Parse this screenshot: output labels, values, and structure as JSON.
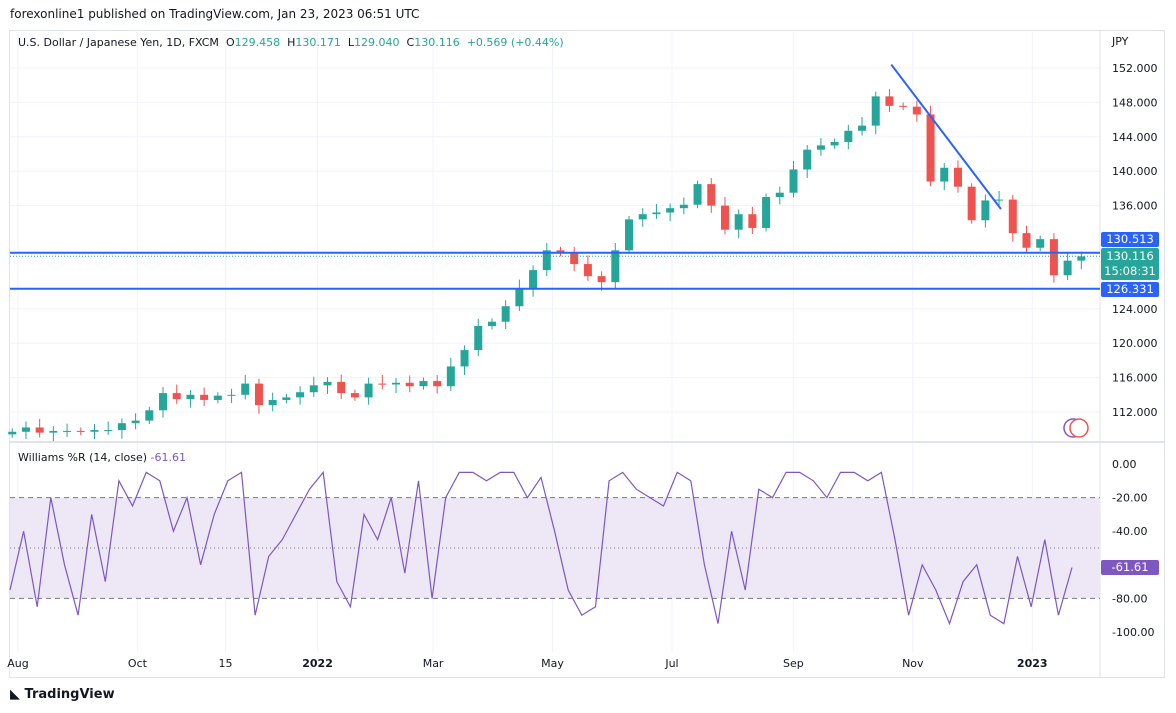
{
  "header": {
    "published": "forexonline1 published on TradingView.com, Jan 23, 2023 06:51 UTC"
  },
  "legend": {
    "symbol": "U.S. Dollar / Japanese Yen, 1D, FXCM",
    "o_label": "O",
    "o": "129.458",
    "h_label": "H",
    "h": "130.171",
    "l_label": "L",
    "l": "129.040",
    "c_label": "C",
    "c": "130.116",
    "change": "+0.569 (+0.44%)"
  },
  "indicator": {
    "name": "Williams %R (14, close)",
    "value": "-61.61"
  },
  "price_tags": {
    "resistance": "130.513",
    "last": "130.116",
    "countdown": "15:08:31",
    "support": "126.331"
  },
  "footer": {
    "brand": "TradingView"
  },
  "colors": {
    "up": "#26a69a",
    "down": "#ef5350",
    "line": "#2962ff",
    "williams": "#7e57c2",
    "band": "#ede7f6"
  },
  "chart_data": [
    {
      "type": "candlestick",
      "currency": "JPY",
      "ylim": [
        110,
        153
      ],
      "yticks": [
        "152.000",
        "148.000",
        "144.000",
        "140.000",
        "136.000",
        "124.000",
        "120.000",
        "116.000",
        "112.000"
      ],
      "xticks": [
        {
          "label": "Aug",
          "d": "2021-08-01"
        },
        {
          "label": "Oct",
          "d": "2021-10-01"
        },
        {
          "label": "15",
          "d": "2021-11-15"
        },
        {
          "label": "2022",
          "d": "2022-01-01"
        },
        {
          "label": "Mar",
          "d": "2022-03-01"
        },
        {
          "label": "May",
          "d": "2022-05-01"
        },
        {
          "label": "Jul",
          "d": "2022-07-01"
        },
        {
          "label": "Sep",
          "d": "2022-09-01"
        },
        {
          "label": "Nov",
          "d": "2022-11-01"
        },
        {
          "label": "2023",
          "d": "2023-01-01"
        }
      ],
      "horizontal_lines": [
        130.513,
        126.331
      ],
      "last_price": 130.116,
      "trendline": [
        {
          "d": "2022-10-21",
          "p": 152.4
        },
        {
          "d": "2022-12-16",
          "p": 135.6
        }
      ],
      "weekly_close": [
        [
          "2021-07-26",
          109.7
        ],
        [
          "2021-08-02",
          110.2
        ],
        [
          "2021-08-09",
          109.6
        ],
        [
          "2021-08-16",
          109.8
        ],
        [
          "2021-08-23",
          109.8
        ],
        [
          "2021-08-30",
          109.7
        ],
        [
          "2021-09-06",
          109.9
        ],
        [
          "2021-09-13",
          109.9
        ],
        [
          "2021-09-20",
          110.7
        ],
        [
          "2021-09-27",
          111.0
        ],
        [
          "2021-10-04",
          112.2
        ],
        [
          "2021-10-11",
          114.2
        ],
        [
          "2021-10-18",
          113.5
        ],
        [
          "2021-10-25",
          114.0
        ],
        [
          "2021-11-01",
          113.4
        ],
        [
          "2021-11-08",
          113.9
        ],
        [
          "2021-11-15",
          114.0
        ],
        [
          "2021-11-22",
          115.3
        ],
        [
          "2021-11-29",
          112.8
        ],
        [
          "2021-12-06",
          113.4
        ],
        [
          "2021-12-13",
          113.7
        ],
        [
          "2021-12-20",
          114.3
        ],
        [
          "2021-12-27",
          115.1
        ],
        [
          "2022-01-03",
          115.5
        ],
        [
          "2022-01-10",
          114.2
        ],
        [
          "2022-01-17",
          113.7
        ],
        [
          "2022-01-24",
          115.3
        ],
        [
          "2022-01-31",
          115.2
        ],
        [
          "2022-02-07",
          115.4
        ],
        [
          "2022-02-14",
          115.0
        ],
        [
          "2022-02-21",
          115.6
        ],
        [
          "2022-02-28",
          115.0
        ],
        [
          "2022-03-07",
          117.3
        ],
        [
          "2022-03-14",
          119.2
        ],
        [
          "2022-03-21",
          122.0
        ],
        [
          "2022-03-28",
          122.5
        ],
        [
          "2022-04-04",
          124.3
        ],
        [
          "2022-04-11",
          126.4
        ],
        [
          "2022-04-18",
          128.5
        ],
        [
          "2022-04-25",
          130.8
        ],
        [
          "2022-05-02",
          130.5
        ],
        [
          "2022-05-09",
          129.2
        ],
        [
          "2022-05-16",
          127.8
        ],
        [
          "2022-05-23",
          127.1
        ],
        [
          "2022-05-30",
          130.8
        ],
        [
          "2022-06-06",
          134.4
        ],
        [
          "2022-06-13",
          135.0
        ],
        [
          "2022-06-20",
          135.2
        ],
        [
          "2022-06-27",
          135.7
        ],
        [
          "2022-07-04",
          136.1
        ],
        [
          "2022-07-11",
          138.5
        ],
        [
          "2022-07-18",
          136.0
        ],
        [
          "2022-07-25",
          133.2
        ],
        [
          "2022-08-01",
          135.0
        ],
        [
          "2022-08-08",
          133.4
        ],
        [
          "2022-08-15",
          137.0
        ],
        [
          "2022-08-22",
          137.5
        ],
        [
          "2022-08-29",
          140.2
        ],
        [
          "2022-09-05",
          142.5
        ],
        [
          "2022-09-12",
          143.0
        ],
        [
          "2022-09-19",
          143.4
        ],
        [
          "2022-09-26",
          144.7
        ],
        [
          "2022-10-03",
          145.3
        ],
        [
          "2022-10-10",
          148.7
        ],
        [
          "2022-10-17",
          147.6
        ],
        [
          "2022-10-24",
          147.5
        ],
        [
          "2022-10-31",
          146.6
        ],
        [
          "2022-11-07",
          138.8
        ],
        [
          "2022-11-14",
          140.4
        ],
        [
          "2022-11-21",
          138.2
        ],
        [
          "2022-11-28",
          134.3
        ],
        [
          "2022-12-05",
          136.6
        ],
        [
          "2022-12-12",
          136.7
        ],
        [
          "2022-12-19",
          132.8
        ],
        [
          "2022-12-26",
          131.1
        ],
        [
          "2023-01-02",
          132.1
        ],
        [
          "2023-01-09",
          127.9
        ],
        [
          "2023-01-16",
          129.6
        ],
        [
          "2023-01-23",
          130.1
        ]
      ]
    },
    {
      "type": "line",
      "name": "Williams %R (14, close)",
      "ylim": [
        -100,
        0
      ],
      "yticks": [
        "0.00",
        "-20.00",
        "-40.00",
        "-80.00",
        "-100.00"
      ],
      "bands": [
        -20,
        -50,
        -80
      ],
      "values": [
        -75,
        -40,
        -85,
        -20,
        -60,
        -90,
        -30,
        -70,
        -10,
        -25,
        -5,
        -10,
        -40,
        -20,
        -60,
        -30,
        -10,
        -5,
        -90,
        -55,
        -45,
        -30,
        -15,
        -5,
        -70,
        -85,
        -30,
        -45,
        -20,
        -65,
        -10,
        -80,
        -20,
        -5,
        -5,
        -10,
        -5,
        -5,
        -20,
        -8,
        -40,
        -75,
        -90,
        -85,
        -10,
        -5,
        -15,
        -20,
        -25,
        -5,
        -10,
        -60,
        -95,
        -40,
        -75,
        -15,
        -20,
        -5,
        -5,
        -10,
        -20,
        -5,
        -5,
        -10,
        -5,
        -45,
        -90,
        -60,
        -75,
        -95,
        -70,
        -60,
        -90,
        -95,
        -55,
        -85,
        -45,
        -90,
        -61.61
      ]
    }
  ]
}
